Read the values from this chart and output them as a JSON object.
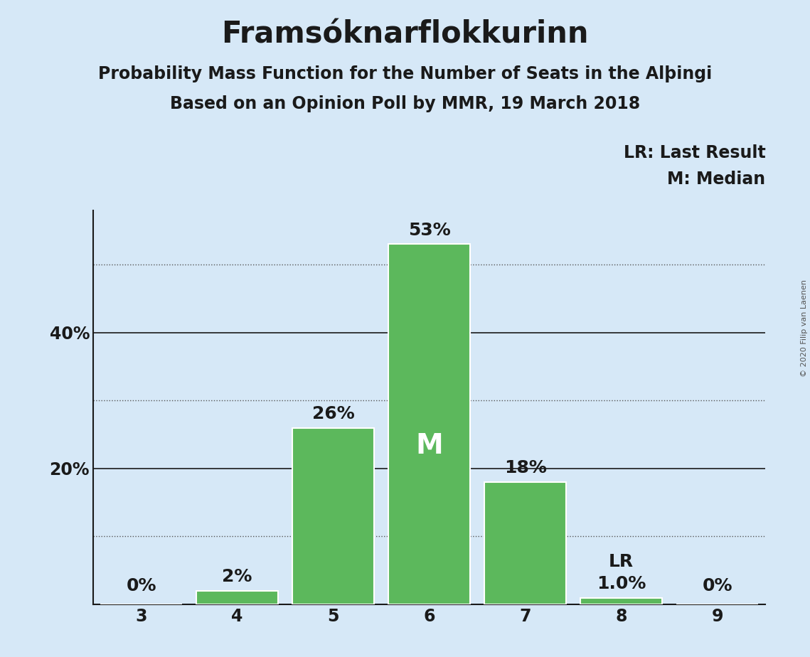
{
  "title": "Framsóknarflokkurinn",
  "subtitle1": "Probability Mass Function for the Number of Seats in the Alþingi",
  "subtitle2": "Based on an Opinion Poll by MMR, 19 March 2018",
  "copyright": "© 2020 Filip van Laenen",
  "categories": [
    3,
    4,
    5,
    6,
    7,
    8,
    9
  ],
  "values": [
    0.0,
    2.0,
    26.0,
    53.0,
    18.0,
    1.0,
    0.0
  ],
  "bar_color": "#5cb85c",
  "bar_edge_color": "#ffffff",
  "background_color": "#d6e8f7",
  "solid_grid_color": "#1a1a1a",
  "dotted_grid_color": "#555555",
  "ylim": [
    0,
    58
  ],
  "xlim": [
    2.5,
    9.5
  ],
  "solid_yticks": [
    20,
    40
  ],
  "dotted_yticks": [
    10,
    30,
    50
  ],
  "ytick_labels_solid": [
    "20%",
    "40%"
  ],
  "median_bar": 6,
  "last_result_bar": 8,
  "annotations": [
    "0%",
    "2%",
    "26%",
    "53%",
    "18%",
    "1.0%",
    "0%"
  ],
  "median_label": "M",
  "lr_label": "LR",
  "legend_lr": "LR: Last Result",
  "legend_m": "M: Median",
  "title_fontsize": 30,
  "subtitle_fontsize": 17,
  "tick_fontsize": 17,
  "annotation_fontsize": 18,
  "legend_fontsize": 17,
  "m_fontsize": 28
}
